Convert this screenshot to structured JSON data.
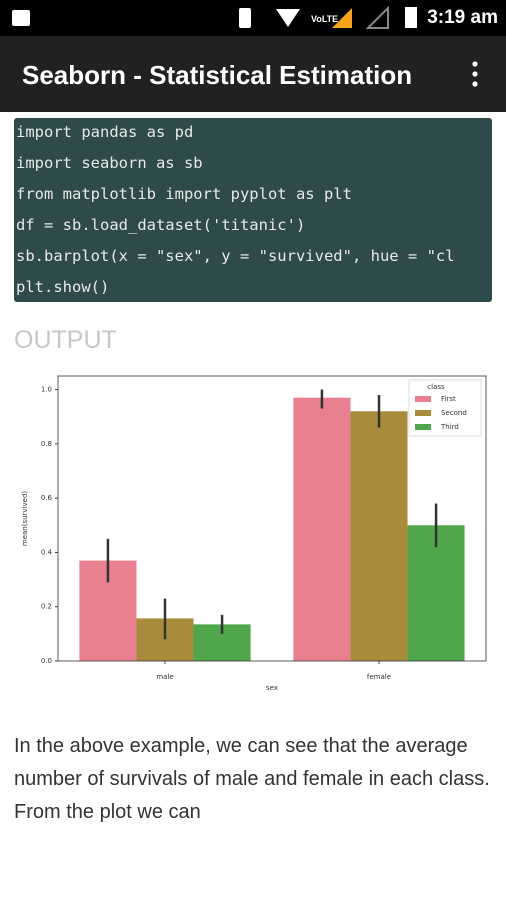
{
  "status_bar": {
    "network": "VoLTE",
    "time": "3:19 am"
  },
  "app_bar": {
    "title": "Seaborn - Statistical Estimation"
  },
  "code": {
    "lines": [
      "import pandas as pd",
      "import seaborn as sb",
      "from matplotlib import pyplot as plt",
      "df = sb.load_dataset('titanic')",
      "sb.barplot(x = \"sex\", y = \"survived\", hue = \"cl",
      "plt.show()"
    ]
  },
  "output_heading": "OUTPUT",
  "chart_data": {
    "type": "bar",
    "xlabel": "sex",
    "ylabel": "mean(survived)",
    "categories": [
      "male",
      "female"
    ],
    "series": [
      {
        "name": "First",
        "color": "#e8808f",
        "values": [
          0.37,
          0.97
        ],
        "ci_low": [
          0.29,
          0.93
        ],
        "ci_high": [
          0.45,
          1.0
        ]
      },
      {
        "name": "Second",
        "color": "#a88c3b",
        "values": [
          0.157,
          0.92
        ],
        "ci_low": [
          0.08,
          0.86
        ],
        "ci_high": [
          0.23,
          0.98
        ]
      },
      {
        "name": "Third",
        "color": "#4fa64b",
        "values": [
          0.135,
          0.5
        ],
        "ci_low": [
          0.1,
          0.42
        ],
        "ci_high": [
          0.17,
          0.58
        ]
      }
    ],
    "ylim": [
      0,
      1.05
    ],
    "yticks": [
      {
        "value": 0,
        "label": "0.0"
      },
      0.2,
      0.4,
      0.6,
      0.8,
      {
        "value": 1,
        "label": "1.0"
      }
    ],
    "legend": {
      "title": "class",
      "position": "upper right"
    }
  },
  "paragraph": "In the above example, we can see that the average number of survivals of male and female in each class. From the plot we can"
}
